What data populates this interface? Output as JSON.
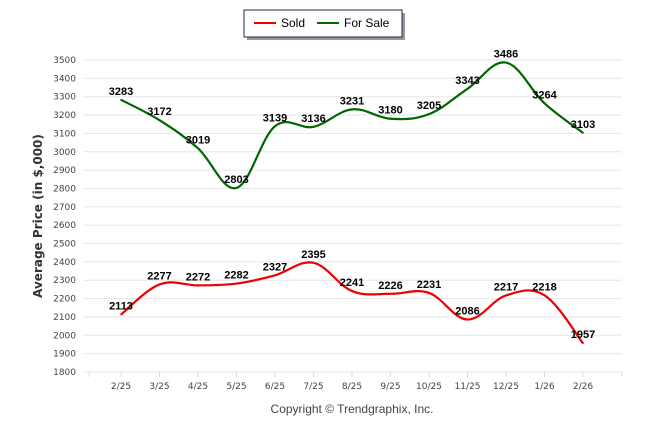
{
  "chart_data": {
    "type": "line",
    "title": "",
    "xlabel": "",
    "ylabel": "Average Price (in $,000)",
    "ylim": [
      1800,
      3500
    ],
    "ytick_step": 100,
    "grid": true,
    "legend_position": "top-center",
    "categories": [
      "2/25",
      "3/25",
      "4/25",
      "5/25",
      "6/25",
      "7/25",
      "8/25",
      "9/25",
      "10/25",
      "11/25",
      "12/25",
      "1/26",
      "2/26"
    ],
    "series": [
      {
        "name": "Sold",
        "color": "#ee0000",
        "values": [
          2113,
          2277,
          2272,
          2282,
          2327,
          2395,
          2241,
          2226,
          2231,
          2086,
          2217,
          2218,
          1957
        ]
      },
      {
        "name": "For Sale",
        "color": "#006600",
        "values": [
          3283,
          3172,
          3019,
          2803,
          3139,
          3136,
          3231,
          3180,
          3205,
          3343,
          3486,
          3264,
          3103
        ]
      }
    ],
    "footer": "Copyright © Trendgraphix, Inc."
  }
}
